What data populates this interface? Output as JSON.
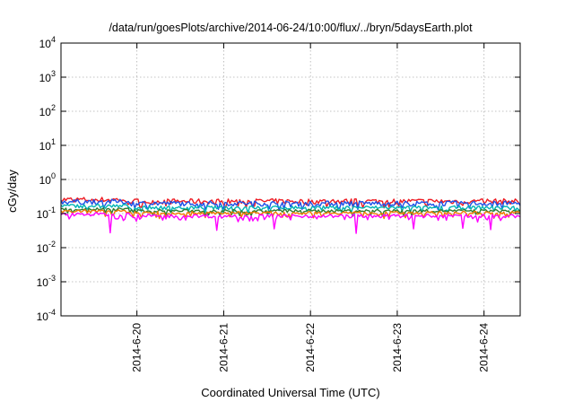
{
  "chart_data": {
    "type": "line",
    "title": "/data/run/goesPlots/archive/2014-06-24/10:00/flux/../bryn/5daysEarth.plot",
    "xlabel": "Coordinated Universal Time (UTC)",
    "ylabel": "cGy/day",
    "yscale": "log",
    "ylim": [
      0.0001,
      10000
    ],
    "xlim": [
      "2014-06-19 03:00",
      "2014-06-24 10:00"
    ],
    "grid": true,
    "legend": "none",
    "yticks": [
      {
        "base": "10",
        "exp": "-4",
        "value": 0.0001
      },
      {
        "base": "10",
        "exp": "-3",
        "value": 0.001
      },
      {
        "base": "10",
        "exp": "-2",
        "value": 0.01
      },
      {
        "base": "10",
        "exp": "-1",
        "value": 0.1
      },
      {
        "base": "10",
        "exp": "0",
        "value": 1
      },
      {
        "base": "10",
        "exp": "1",
        "value": 10
      },
      {
        "base": "10",
        "exp": "2",
        "value": 100
      },
      {
        "base": "10",
        "exp": "3",
        "value": 1000
      },
      {
        "base": "10",
        "exp": "4",
        "value": 10000
      }
    ],
    "xticks": [
      {
        "label": "2014-6-20",
        "date": "2014-06-20 00:00"
      },
      {
        "label": "2014-6-21",
        "date": "2014-06-21 00:00"
      },
      {
        "label": "2014-6-22",
        "date": "2014-06-22 00:00"
      },
      {
        "label": "2014-6-23",
        "date": "2014-06-23 00:00"
      },
      {
        "label": "2014-6-24",
        "date": "2014-06-24 00:00"
      }
    ],
    "series": [
      {
        "color": "#ee1c24",
        "level": 0.23,
        "variation": 0.18,
        "dips": false
      },
      {
        "color": "#1e50e8",
        "level": 0.2,
        "variation": 0.17,
        "dips": false
      },
      {
        "color": "#00b4b4",
        "level": 0.15,
        "variation": 0.12,
        "dips": false
      },
      {
        "color": "#2e7d32",
        "level": 0.12,
        "variation": 0.1,
        "dips": false
      },
      {
        "color": "#f07800",
        "level": 0.105,
        "variation": 0.1,
        "dips": false
      },
      {
        "color": "#ff00ff",
        "level": 0.085,
        "variation": 0.12,
        "dips": true
      }
    ]
  }
}
